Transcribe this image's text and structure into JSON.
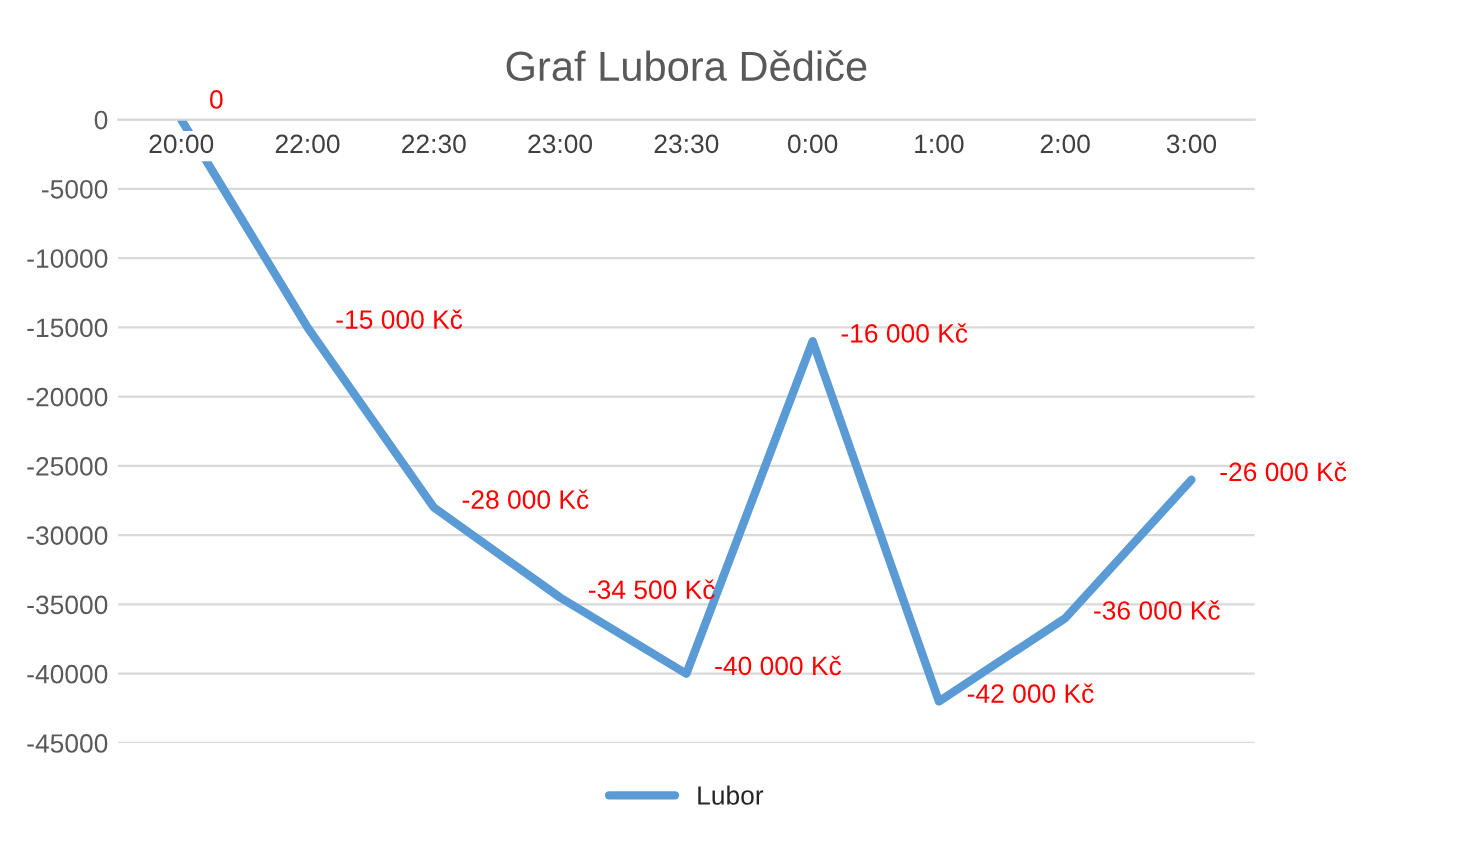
{
  "chart_data": {
    "type": "line",
    "title": "Graf Lubora Dědiče",
    "categories": [
      "20:00",
      "22:00",
      "22:30",
      "23:00",
      "23:30",
      "0:00",
      "1:00",
      "2:00",
      "3:00"
    ],
    "series": [
      {
        "name": "Lubor",
        "color": "#5b9bd5",
        "values": [
          0,
          -15000,
          -28000,
          -34500,
          -40000,
          -16000,
          -42000,
          -36000,
          -26000
        ],
        "value_labels": [
          "0",
          "-15 000 Kč",
          "-28 000 Kč",
          "-34 500 Kč",
          "-40 000 Kč",
          "-16 000 Kč",
          "-42 000 Kč",
          "-36 000 Kč",
          "-26 000 Kč"
        ]
      }
    ],
    "ylim": [
      -45000,
      0
    ],
    "yticks": [
      0,
      -5000,
      -10000,
      -15000,
      -20000,
      -25000,
      -30000,
      -35000,
      -40000,
      -45000
    ],
    "grid": "y",
    "legend": "bottom",
    "marker": "none",
    "line_style": "solid"
  }
}
